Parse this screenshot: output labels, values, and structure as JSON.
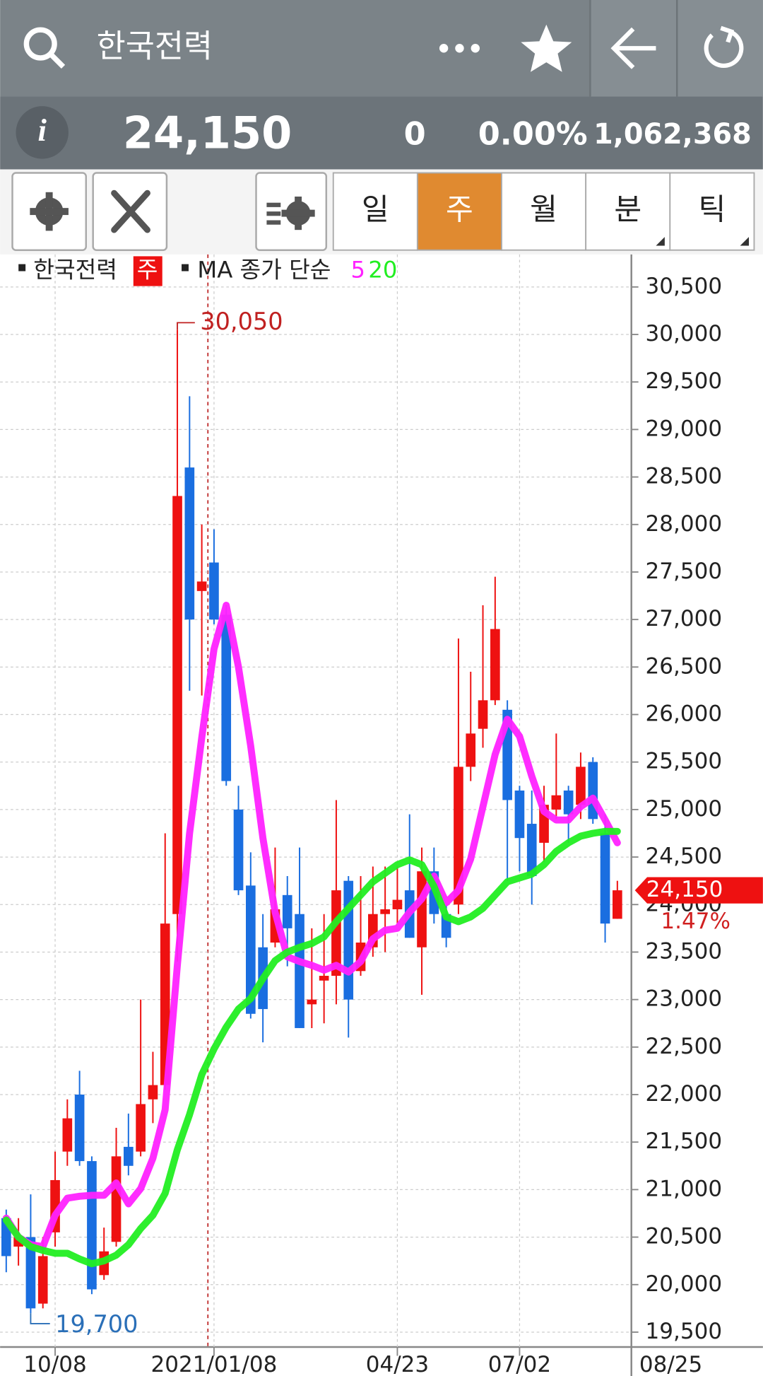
{
  "header": {
    "title": "한국전력"
  },
  "info": {
    "price": "24,150",
    "change": "0",
    "change_rate": "0.00%",
    "volume": "1,062,368"
  },
  "toolbar": {
    "tabs": [
      "일",
      "주",
      "월",
      "분",
      "틱"
    ],
    "active_tab": 1
  },
  "chart_data": {
    "type": "candlestick",
    "legend_name": "한국전력",
    "period": "주",
    "legend_label": "MA 종가 단순",
    "up_color": "#ee1111",
    "down_color": "#1a6ee0",
    "grid": true,
    "categories": [
      null,
      null,
      null,
      null,
      "10/08",
      null,
      null,
      null,
      null,
      null,
      null,
      null,
      null,
      null,
      null,
      null,
      null,
      "2021/01/08",
      null,
      null,
      null,
      null,
      null,
      null,
      null,
      null,
      null,
      null,
      null,
      null,
      null,
      null,
      "04/23",
      null,
      null,
      null,
      null,
      null,
      null,
      null,
      null,
      null,
      "07/02",
      null,
      null,
      null,
      null,
      null,
      null,
      null,
      null
    ],
    "axis_end_label": "08/25",
    "open": [
      20700,
      20400,
      20500,
      19800,
      20550,
      21400,
      22000,
      21300,
      20100,
      20450,
      21450,
      21400,
      21950,
      22100,
      23900,
      28600,
      27300,
      27600,
      27050,
      25000,
      24200,
      23550,
      23600,
      24100,
      23900,
      22950,
      23200,
      23250,
      24250,
      23300,
      23550,
      23900,
      23950,
      24150,
      23550,
      24350,
      23900,
      24000,
      25450,
      25850,
      26150,
      26050,
      25200,
      24850,
      24650,
      25000,
      25200,
      25050,
      25500,
      24750,
      23850
    ],
    "high": [
      20790,
      20700,
      20950,
      20500,
      21400,
      21950,
      22250,
      21350,
      20600,
      21650,
      21800,
      23000,
      22450,
      24750,
      30050,
      29350,
      28000,
      27950,
      27150,
      25250,
      24550,
      23900,
      24600,
      24300,
      24600,
      23750,
      23900,
      25100,
      24300,
      24300,
      24400,
      24400,
      24400,
      24950,
      24600,
      24600,
      24000,
      26800,
      26450,
      27150,
      27450,
      26150,
      25250,
      25200,
      25250,
      25800,
      25250,
      25600,
      25550,
      24950,
      24250
    ],
    "low": [
      20130,
      20200,
      19700,
      19750,
      20400,
      21250,
      21250,
      19900,
      20050,
      20400,
      21150,
      21350,
      21700,
      22050,
      23400,
      26250,
      26200,
      26950,
      25250,
      24100,
      22800,
      22550,
      23550,
      23350,
      22700,
      22700,
      22750,
      22950,
      22600,
      23250,
      23450,
      23500,
      23800,
      23650,
      23050,
      23800,
      23550,
      23900,
      25300,
      25650,
      26100,
      24250,
      24350,
      24000,
      24450,
      24900,
      24650,
      24900,
      24850,
      23600,
      23850
    ],
    "close": [
      20300,
      20500,
      19750,
      20300,
      21100,
      21750,
      21300,
      19950,
      20350,
      21350,
      21250,
      21900,
      22100,
      23800,
      28300,
      27000,
      27400,
      27000,
      25300,
      24150,
      22850,
      22900,
      23950,
      23750,
      22700,
      23000,
      23250,
      24150,
      23000,
      23600,
      23900,
      23950,
      24050,
      23650,
      24350,
      23900,
      23650,
      25450,
      25800,
      26150,
      26900,
      25100,
      24700,
      24300,
      25050,
      25150,
      24950,
      25450,
      24900,
      23800,
      24150
    ],
    "series": [
      {
        "name": "5",
        "color": "#ff22ff",
        "values": [
          20700,
          20500,
          20420,
          20400,
          20730,
          20910,
          20930,
          20940,
          20940,
          21070,
          20850,
          21010,
          21330,
          21840,
          23360,
          24750,
          25760,
          26690,
          27150,
          26500,
          25670,
          24700,
          23920,
          23450,
          23400,
          23360,
          23310,
          23360,
          23290,
          23400,
          23640,
          23730,
          23750,
          23920,
          24060,
          24300,
          24020,
          24150,
          24480,
          25030,
          25580,
          25950,
          25770,
          25350,
          24980,
          24890,
          24890,
          25030,
          25120,
          24890,
          24650
        ]
      },
      {
        "name": "20",
        "color": "#22ee22",
        "values": [
          20680,
          20500,
          20400,
          20360,
          20330,
          20330,
          20270,
          20220,
          20250,
          20310,
          20420,
          20590,
          20730,
          20960,
          21420,
          21790,
          22210,
          22480,
          22710,
          22900,
          23010,
          23220,
          23410,
          23500,
          23550,
          23590,
          23660,
          23820,
          23960,
          24100,
          24240,
          24330,
          24420,
          24470,
          24420,
          24190,
          23870,
          23820,
          23870,
          23960,
          24100,
          24240,
          24280,
          24320,
          24420,
          24560,
          24650,
          24720,
          24750,
          24770,
          24770
        ]
      }
    ],
    "ylim": [
      19500,
      30500
    ],
    "yticks": [
      {
        "value": 19500,
        "label": "19,500"
      },
      {
        "value": 20000,
        "label": "20,000"
      },
      {
        "value": 20500,
        "label": "20,500"
      },
      {
        "value": 21000,
        "label": "21,000"
      },
      {
        "value": 21500,
        "label": "21,500"
      },
      {
        "value": 22000,
        "label": "22,000"
      },
      {
        "value": 22500,
        "label": "22,500"
      },
      {
        "value": 23000,
        "label": "23,000"
      },
      {
        "value": 23500,
        "label": "23,500"
      },
      {
        "value": 24000,
        "label": "24,000"
      },
      {
        "value": 24500,
        "label": "24,500"
      },
      {
        "value": 25000,
        "label": "25,000"
      },
      {
        "value": 25500,
        "label": "25,500"
      },
      {
        "value": 26000,
        "label": "26,000"
      },
      {
        "value": 26500,
        "label": "26,500"
      },
      {
        "value": 27000,
        "label": "27,000"
      },
      {
        "value": 27500,
        "label": "27,500"
      },
      {
        "value": 28000,
        "label": "28,000"
      },
      {
        "value": 28500,
        "label": "28,500"
      },
      {
        "value": 29000,
        "label": "29,000"
      },
      {
        "value": 29500,
        "label": "29,500"
      },
      {
        "value": 30000,
        "label": "30,000"
      },
      {
        "value": 30500,
        "label": "30,500"
      }
    ],
    "high_label": {
      "value": 30050,
      "label": "30,050"
    },
    "low_label": {
      "value": 19700,
      "label": "19,700"
    },
    "last_label": {
      "value": 24150,
      "label": "24,150"
    },
    "last_change_label": "1.47%"
  }
}
